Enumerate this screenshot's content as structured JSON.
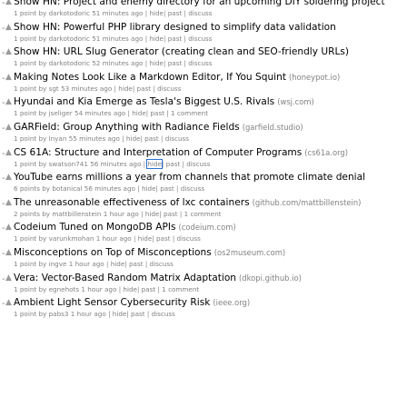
{
  "bullet": "-",
  "vote_glyph": "▲",
  "labels": {
    "hide": "hide",
    "past": "past",
    "discuss": "discuss",
    "sep": "|"
  },
  "items": [
    {
      "title": "Show HN: Project and enemy directory for an upcoming DIY soldering project",
      "domain": "",
      "points": "1 point",
      "by": "darkotodoric",
      "age": "51 minutes ago",
      "comments": "discuss"
    },
    {
      "title": "Show HN: Powerful PHP library designed to simplify data validation",
      "domain": "",
      "points": "1 point",
      "by": "darkotodoric",
      "age": "51 minutes ago",
      "comments": "discuss"
    },
    {
      "title": "Show HN: URL Slug Generator (creating clean and SEO-friendly URLs)",
      "domain": "",
      "points": "1 point",
      "by": "darkotodoric",
      "age": "52 minutes ago",
      "comments": "discuss"
    },
    {
      "title": "Making Notes Look Like a Markdown Editor, If You Squint",
      "domain": "(honeypot.io)",
      "points": "1 point",
      "by": "sgt",
      "age": "53 minutes ago",
      "comments": "discuss"
    },
    {
      "title": "Hyundai and Kia Emerge as Tesla's Biggest U.S. Rivals",
      "domain": "(wsj.com)",
      "points": "1 point",
      "by": "jseliger",
      "age": "54 minutes ago",
      "comments": "1 comment"
    },
    {
      "title": "GARField: Group Anything with Radiance Fields",
      "domain": "(garfield.studio)",
      "points": "1 point",
      "by": "lnyan",
      "age": "55 minutes ago",
      "comments": "discuss"
    },
    {
      "title": "CS 61A: Structure and Interpretation of Computer Programs",
      "domain": "(cs61a.org)",
      "points": "1 point",
      "by": "swatson741",
      "age": "56 minutes ago",
      "comments": "discuss",
      "hide_highlight": true
    },
    {
      "title": "YouTube earns millions a year from channels that promote climate denial",
      "domain": "",
      "points": "6 points",
      "by": "botanical",
      "age": "56 minutes ago",
      "comments": "discuss"
    },
    {
      "title": "The unreasonable effectiveness of lxc containers",
      "domain": "(github.com/mattbillenstein)",
      "points": "2 points",
      "by": "mattbillenstein",
      "age": "1 hour ago",
      "comments": "1 comment"
    },
    {
      "title": "Codeium Tuned on MongoDB APIs",
      "domain": "(codeium.com)",
      "points": "1 point",
      "by": "varunkmohan",
      "age": "1 hour ago",
      "comments": "discuss"
    },
    {
      "title": "Misconceptions on Top of Misconceptions",
      "domain": "(os2museum.com)",
      "points": "1 point",
      "by": "ingve",
      "age": "1 hour ago",
      "comments": "discuss"
    },
    {
      "title": "Vera: Vector-Based Random Matrix Adaptation",
      "domain": "(dkopi.github.io)",
      "points": "1 point",
      "by": "egnehots",
      "age": "1 hour ago",
      "comments": "1 comment"
    },
    {
      "title": "Ambient Light Sensor Cybersecurity Risk",
      "domain": "(ieee.org)",
      "points": "1 point",
      "by": "pabs3",
      "age": "1 hour ago",
      "comments": "discuss"
    }
  ]
}
